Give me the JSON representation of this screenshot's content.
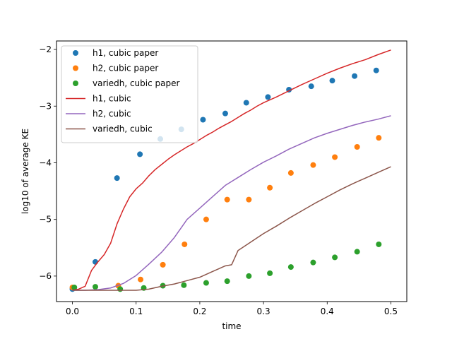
{
  "chart_data": {
    "type": "scatter",
    "title": "",
    "xlabel": "time",
    "ylabel": "log10 of average KE",
    "xlim": [
      -0.025,
      0.525
    ],
    "ylim": [
      -6.45,
      -1.85
    ],
    "xticks": [
      0.0,
      0.1,
      0.2,
      0.3,
      0.4,
      0.5
    ],
    "xtick_labels": [
      "0.0",
      "0.1",
      "0.2",
      "0.3",
      "0.4",
      "0.5"
    ],
    "yticks": [
      -6,
      -5,
      -4,
      -3,
      -2
    ],
    "ytick_labels": [
      "−6",
      "−5",
      "−4",
      "−3",
      "−2"
    ],
    "grid": false,
    "legend_position": "top-left",
    "series": [
      {
        "name": "h1, cubic paper",
        "kind": "points",
        "color": "#1f77b4",
        "x": [
          0.0,
          0.036,
          0.07,
          0.106,
          0.138,
          0.171,
          0.205,
          0.24,
          0.273,
          0.307,
          0.34,
          0.375,
          0.408,
          0.443,
          0.477
        ],
        "y": [
          -6.23,
          -5.75,
          -4.27,
          -3.85,
          -3.58,
          -3.41,
          -3.24,
          -3.13,
          -2.94,
          -2.84,
          -2.71,
          -2.65,
          -2.55,
          -2.47,
          -2.37
        ]
      },
      {
        "name": "h2, cubic paper",
        "kind": "points",
        "color": "#ff7f0e",
        "x": [
          0.0,
          0.072,
          0.107,
          0.142,
          0.176,
          0.21,
          0.243,
          0.277,
          0.31,
          0.343,
          0.378,
          0.412,
          0.447,
          0.481
        ],
        "y": [
          -6.2,
          -6.17,
          -6.06,
          -5.8,
          -5.44,
          -5.0,
          -4.65,
          -4.65,
          -4.44,
          -4.18,
          -4.04,
          -3.9,
          -3.72,
          -3.56
        ]
      },
      {
        "name": "variedh, cubic paper",
        "kind": "points",
        "color": "#2ca02c",
        "x": [
          0.003,
          0.036,
          0.075,
          0.112,
          0.142,
          0.175,
          0.21,
          0.243,
          0.277,
          0.31,
          0.343,
          0.378,
          0.412,
          0.447,
          0.481
        ],
        "y": [
          -6.2,
          -6.19,
          -6.23,
          -6.21,
          -6.17,
          -6.16,
          -6.12,
          -6.09,
          -6.0,
          -5.95,
          -5.84,
          -5.76,
          -5.67,
          -5.57,
          -5.44
        ]
      },
      {
        "name": "h1, cubic",
        "kind": "line",
        "color": "#d62728",
        "x": [
          0.0,
          0.01,
          0.02,
          0.03,
          0.04,
          0.05,
          0.06,
          0.07,
          0.08,
          0.09,
          0.1,
          0.11,
          0.12,
          0.13,
          0.14,
          0.15,
          0.16,
          0.17,
          0.18,
          0.19,
          0.2,
          0.21,
          0.22,
          0.23,
          0.24,
          0.25,
          0.26,
          0.27,
          0.28,
          0.29,
          0.3,
          0.32,
          0.34,
          0.36,
          0.38,
          0.4,
          0.42,
          0.44,
          0.46,
          0.48,
          0.5
        ],
        "y": [
          -6.25,
          -6.23,
          -6.18,
          -5.9,
          -5.75,
          -5.62,
          -5.42,
          -5.08,
          -4.82,
          -4.6,
          -4.46,
          -4.36,
          -4.23,
          -4.12,
          -4.03,
          -3.94,
          -3.86,
          -3.79,
          -3.72,
          -3.66,
          -3.59,
          -3.52,
          -3.46,
          -3.39,
          -3.33,
          -3.27,
          -3.2,
          -3.13,
          -3.07,
          -3.0,
          -2.94,
          -2.84,
          -2.73,
          -2.62,
          -2.52,
          -2.42,
          -2.33,
          -2.25,
          -2.18,
          -2.09,
          -2.01
        ]
      },
      {
        "name": "h2, cubic",
        "kind": "line",
        "color": "#9467bd",
        "x": [
          0.0,
          0.02,
          0.04,
          0.06,
          0.08,
          0.1,
          0.12,
          0.14,
          0.16,
          0.18,
          0.2,
          0.22,
          0.24,
          0.26,
          0.28,
          0.3,
          0.32,
          0.34,
          0.36,
          0.38,
          0.4,
          0.42,
          0.44,
          0.46,
          0.48,
          0.5
        ],
        "y": [
          -6.25,
          -6.25,
          -6.24,
          -6.21,
          -6.13,
          -5.99,
          -5.79,
          -5.58,
          -5.32,
          -5.0,
          -4.8,
          -4.6,
          -4.4,
          -4.26,
          -4.12,
          -3.99,
          -3.88,
          -3.76,
          -3.66,
          -3.56,
          -3.48,
          -3.41,
          -3.34,
          -3.28,
          -3.23,
          -3.17
        ]
      },
      {
        "name": "variedh, cubic",
        "kind": "line",
        "color": "#8c564b",
        "x": [
          0.0,
          0.04,
          0.08,
          0.1,
          0.12,
          0.14,
          0.16,
          0.18,
          0.2,
          0.22,
          0.24,
          0.25,
          0.26,
          0.28,
          0.3,
          0.32,
          0.34,
          0.36,
          0.38,
          0.4,
          0.42,
          0.44,
          0.46,
          0.48,
          0.5
        ],
        "y": [
          -6.25,
          -6.25,
          -6.25,
          -6.25,
          -6.23,
          -6.18,
          -6.14,
          -6.08,
          -6.02,
          -5.92,
          -5.82,
          -5.8,
          -5.55,
          -5.4,
          -5.25,
          -5.12,
          -4.98,
          -4.85,
          -4.72,
          -4.6,
          -4.48,
          -4.37,
          -4.27,
          -4.17,
          -4.07
        ]
      }
    ]
  }
}
